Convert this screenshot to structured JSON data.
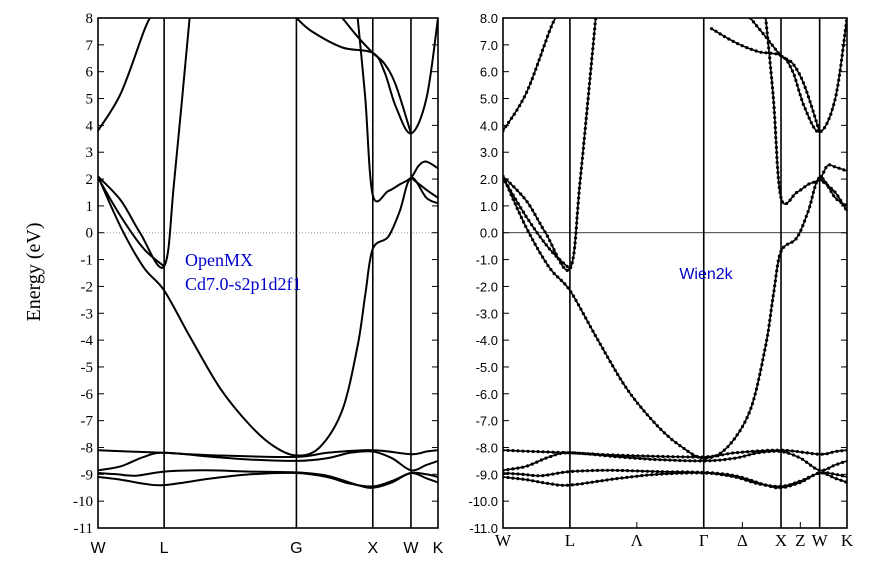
{
  "y_axis_label": "Energy (eV)",
  "chart_data": [
    {
      "type": "line",
      "annotation": [
        "OpenMX",
        "Cd7.0-s2p1d2f1"
      ],
      "ylim": [
        -11,
        8
      ],
      "y_ticks": [
        -11,
        -10,
        -9,
        -8,
        -7,
        -6,
        -5,
        -4,
        -3,
        -2,
        -1,
        0,
        1,
        2,
        3,
        4,
        5,
        6,
        7,
        8
      ],
      "y_tick_labels": [
        "-11",
        "-10",
        "-9",
        "-8",
        "-7",
        "-6",
        "-5",
        "-4",
        "-3",
        "-2",
        "-1",
        "0",
        "1",
        "2",
        "3",
        "4",
        "5",
        "6",
        "7",
        "8"
      ],
      "k_points": [
        "W",
        "L",
        "G",
        "X",
        "W",
        "K"
      ],
      "k_positions": [
        0,
        0.866,
        2.598,
        3.598,
        4.098,
        4.452
      ],
      "fermi_level": 0,
      "fermi_style": "dotted",
      "bands": [
        [
          [
            0,
            -8.95
          ],
          [
            0.25,
            -9.0
          ],
          [
            0.5,
            -9.05
          ],
          [
            0.866,
            -8.9
          ],
          [
            1.4,
            -8.85
          ],
          [
            2.0,
            -8.9
          ],
          [
            2.598,
            -8.93
          ],
          [
            3.0,
            -9.05
          ],
          [
            3.4,
            -9.4
          ],
          [
            3.598,
            -9.5
          ],
          [
            3.85,
            -9.3
          ],
          [
            4.098,
            -8.95
          ],
          [
            4.3,
            -9.15
          ],
          [
            4.452,
            -9.3
          ]
        ],
        [
          [
            0,
            -9.1
          ],
          [
            0.3,
            -9.2
          ],
          [
            0.6,
            -9.35
          ],
          [
            0.866,
            -9.4
          ],
          [
            1.5,
            -9.15
          ],
          [
            2.0,
            -9.0
          ],
          [
            2.598,
            -8.95
          ],
          [
            3.0,
            -9.1
          ],
          [
            3.3,
            -9.35
          ],
          [
            3.598,
            -9.45
          ],
          [
            3.85,
            -9.25
          ],
          [
            4.098,
            -8.95
          ],
          [
            4.3,
            -9.0
          ],
          [
            4.452,
            -9.1
          ]
        ],
        [
          [
            0,
            -8.85
          ],
          [
            0.3,
            -8.7
          ],
          [
            0.6,
            -8.35
          ],
          [
            0.866,
            -8.2
          ],
          [
            1.5,
            -8.35
          ],
          [
            2.0,
            -8.45
          ],
          [
            2.598,
            -8.5
          ],
          [
            3.0,
            -8.4
          ],
          [
            3.3,
            -8.2
          ],
          [
            3.598,
            -8.15
          ],
          [
            3.85,
            -8.4
          ],
          [
            4.098,
            -8.85
          ],
          [
            4.3,
            -8.65
          ],
          [
            4.452,
            -8.5
          ]
        ],
        [
          [
            0,
            -8.1
          ],
          [
            0.4,
            -8.15
          ],
          [
            0.866,
            -8.2
          ],
          [
            1.6,
            -8.3
          ],
          [
            2.598,
            -8.35
          ],
          [
            3.0,
            -8.2
          ],
          [
            3.598,
            -8.1
          ],
          [
            4.098,
            -8.25
          ],
          [
            4.3,
            -8.15
          ],
          [
            4.452,
            -8.1
          ]
        ],
        [
          [
            0,
            2.05
          ],
          [
            0.3,
            0.6
          ],
          [
            0.6,
            -0.6
          ],
          [
            0.866,
            -1.25
          ]
        ],
        [
          [
            0,
            2.1
          ],
          [
            0.3,
            0.2
          ],
          [
            0.6,
            -1.3
          ],
          [
            0.866,
            -2.15
          ],
          [
            1.2,
            -3.85
          ],
          [
            1.6,
            -5.8
          ],
          [
            2.0,
            -7.2
          ],
          [
            2.3,
            -7.95
          ],
          [
            2.598,
            -8.3
          ],
          [
            2.9,
            -8.0
          ],
          [
            3.2,
            -6.6
          ],
          [
            3.4,
            -4.2
          ],
          [
            3.5,
            -2.3
          ],
          [
            3.598,
            -0.6
          ],
          [
            3.8,
            -0.15
          ],
          [
            3.95,
            0.8
          ],
          [
            4.098,
            2.05
          ],
          [
            4.3,
            1.3
          ],
          [
            4.452,
            1.1
          ]
        ],
        [
          [
            0,
            2.1
          ],
          [
            0.3,
            1.2
          ],
          [
            0.55,
            0.0
          ],
          [
            0.866,
            -1.25
          ],
          [
            1.0,
            2.0
          ],
          [
            1.2,
            8.0
          ]
        ],
        [
          [
            0,
            3.8
          ],
          [
            0.3,
            5.2
          ],
          [
            0.6,
            7.5
          ],
          [
            0.68,
            8.0
          ]
        ],
        [
          [
            2.598,
            8.0
          ],
          [
            2.8,
            7.5
          ],
          [
            3.2,
            6.9
          ],
          [
            3.598,
            6.7
          ],
          [
            3.75,
            6.0
          ],
          [
            3.9,
            4.7
          ],
          [
            4.098,
            3.7
          ],
          [
            4.3,
            5.0
          ],
          [
            4.452,
            8.0
          ]
        ],
        [
          [
            3.2,
            8.0
          ],
          [
            3.4,
            7.3
          ],
          [
            3.598,
            6.7
          ],
          [
            3.75,
            6.3
          ],
          [
            3.9,
            5.5
          ],
          [
            4.098,
            3.7
          ]
        ],
        [
          [
            3.4,
            8.0
          ],
          [
            3.5,
            5.0
          ],
          [
            3.598,
            1.4
          ],
          [
            3.8,
            1.55
          ],
          [
            3.95,
            1.8
          ],
          [
            4.098,
            2.05
          ],
          [
            4.2,
            2.5
          ],
          [
            4.3,
            2.65
          ],
          [
            4.452,
            2.4
          ]
        ],
        [
          [
            4.098,
            2.05
          ],
          [
            4.3,
            1.6
          ],
          [
            4.452,
            1.3
          ]
        ]
      ]
    },
    {
      "type": "line",
      "annotation": [
        "Wien2k"
      ],
      "ylim": [
        -11,
        8
      ],
      "y_ticks": [
        -11,
        -10,
        -9,
        -8,
        -7,
        -6,
        -5,
        -4,
        -3,
        -2,
        -1,
        0,
        1,
        2,
        3,
        4,
        5,
        6,
        7,
        8
      ],
      "y_tick_labels": [
        "-11.0",
        "-10.0",
        "-9.0",
        "-8.0",
        "-7.0",
        "-6.0",
        "-5.0",
        "-4.0",
        "-3.0",
        "-2.0",
        "-1.0",
        "0.0",
        "1.0",
        "2.0",
        "3.0",
        "4.0",
        "5.0",
        "6.0",
        "7.0",
        "8.0"
      ],
      "k_points": [
        "W",
        "L",
        "Λ",
        "Γ",
        "Δ",
        "X",
        "Z",
        "W",
        "K"
      ],
      "k_positions": [
        0,
        0.866,
        1.732,
        2.598,
        3.098,
        3.598,
        3.848,
        4.098,
        4.452
      ],
      "fermi_level": 0,
      "fermi_style": "solid",
      "bands": [
        [
          [
            0,
            -8.95
          ],
          [
            0.25,
            -9.0
          ],
          [
            0.5,
            -9.05
          ],
          [
            0.866,
            -8.9
          ],
          [
            1.4,
            -8.85
          ],
          [
            2.0,
            -8.9
          ],
          [
            2.598,
            -8.93
          ],
          [
            3.0,
            -9.05
          ],
          [
            3.4,
            -9.4
          ],
          [
            3.598,
            -9.5
          ],
          [
            3.85,
            -9.3
          ],
          [
            4.098,
            -8.95
          ],
          [
            4.3,
            -9.15
          ],
          [
            4.452,
            -9.3
          ]
        ],
        [
          [
            0,
            -9.1
          ],
          [
            0.3,
            -9.2
          ],
          [
            0.6,
            -9.35
          ],
          [
            0.866,
            -9.4
          ],
          [
            1.5,
            -9.15
          ],
          [
            2.0,
            -9.0
          ],
          [
            2.598,
            -8.95
          ],
          [
            3.0,
            -9.1
          ],
          [
            3.3,
            -9.35
          ],
          [
            3.598,
            -9.45
          ],
          [
            3.85,
            -9.25
          ],
          [
            4.098,
            -8.95
          ],
          [
            4.3,
            -9.0
          ],
          [
            4.452,
            -9.1
          ]
        ],
        [
          [
            0,
            -8.85
          ],
          [
            0.3,
            -8.7
          ],
          [
            0.6,
            -8.35
          ],
          [
            0.866,
            -8.2
          ],
          [
            1.5,
            -8.35
          ],
          [
            2.0,
            -8.45
          ],
          [
            2.598,
            -8.5
          ],
          [
            3.0,
            -8.4
          ],
          [
            3.3,
            -8.2
          ],
          [
            3.598,
            -8.15
          ],
          [
            3.85,
            -8.4
          ],
          [
            4.098,
            -8.85
          ],
          [
            4.3,
            -8.65
          ],
          [
            4.452,
            -8.5
          ]
        ],
        [
          [
            0,
            -8.1
          ],
          [
            0.4,
            -8.15
          ],
          [
            0.866,
            -8.2
          ],
          [
            1.6,
            -8.3
          ],
          [
            2.598,
            -8.35
          ],
          [
            3.0,
            -8.2
          ],
          [
            3.598,
            -8.1
          ],
          [
            4.098,
            -8.25
          ],
          [
            4.3,
            -8.15
          ],
          [
            4.452,
            -8.1
          ]
        ],
        [
          [
            0,
            2.05
          ],
          [
            0.3,
            0.6
          ],
          [
            0.6,
            -0.6
          ],
          [
            0.866,
            -1.35
          ]
        ],
        [
          [
            0,
            2.1
          ],
          [
            0.3,
            0.2
          ],
          [
            0.6,
            -1.3
          ],
          [
            0.866,
            -2.15
          ],
          [
            1.2,
            -3.85
          ],
          [
            1.6,
            -5.8
          ],
          [
            2.0,
            -7.2
          ],
          [
            2.3,
            -7.95
          ],
          [
            2.598,
            -8.4
          ],
          [
            2.9,
            -8.0
          ],
          [
            3.2,
            -6.6
          ],
          [
            3.4,
            -4.2
          ],
          [
            3.5,
            -2.3
          ],
          [
            3.598,
            -0.7
          ],
          [
            3.8,
            -0.2
          ],
          [
            3.95,
            0.8
          ],
          [
            4.098,
            2.05
          ],
          [
            4.3,
            1.3
          ],
          [
            4.452,
            1.0
          ]
        ],
        [
          [
            0,
            2.1
          ],
          [
            0.3,
            1.2
          ],
          [
            0.55,
            0.0
          ],
          [
            0.866,
            -1.35
          ],
          [
            1.0,
            2.0
          ],
          [
            1.2,
            8.0
          ]
        ],
        [
          [
            0,
            3.8
          ],
          [
            0.3,
            5.2
          ],
          [
            0.6,
            7.5
          ],
          [
            0.68,
            8.0
          ]
        ],
        [
          [
            2.7,
            7.6
          ],
          [
            3.0,
            7.1
          ],
          [
            3.3,
            6.75
          ],
          [
            3.598,
            6.6
          ],
          [
            3.75,
            6.0
          ],
          [
            3.9,
            4.7
          ],
          [
            4.098,
            3.75
          ],
          [
            4.3,
            5.0
          ],
          [
            4.452,
            8.0
          ]
        ],
        [
          [
            3.2,
            8.0
          ],
          [
            3.4,
            7.3
          ],
          [
            3.598,
            6.6
          ],
          [
            3.75,
            6.3
          ],
          [
            3.9,
            5.5
          ],
          [
            4.098,
            3.75
          ]
        ],
        [
          [
            3.4,
            8.0
          ],
          [
            3.5,
            5.0
          ],
          [
            3.598,
            1.3
          ],
          [
            3.8,
            1.5
          ],
          [
            3.95,
            1.8
          ],
          [
            4.098,
            2.0
          ],
          [
            4.2,
            2.5
          ],
          [
            4.3,
            2.45
          ],
          [
            4.452,
            2.3
          ]
        ],
        [
          [
            4.098,
            2.0
          ],
          [
            4.3,
            1.5
          ],
          [
            4.452,
            0.8
          ]
        ]
      ]
    }
  ]
}
